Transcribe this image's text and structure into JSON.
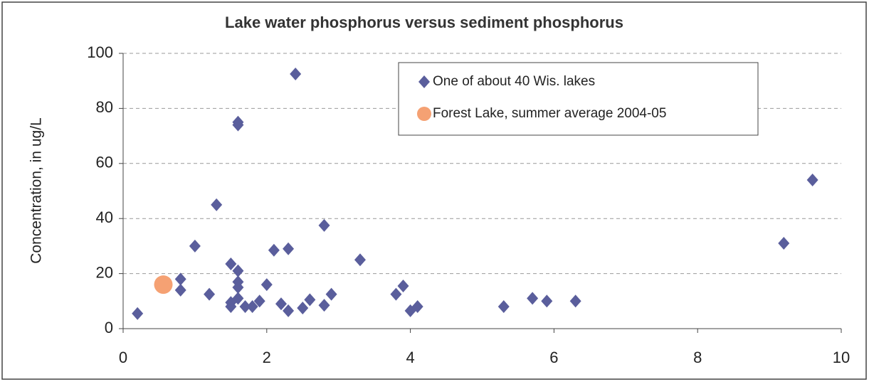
{
  "chart_data": {
    "type": "scatter",
    "title": "Lake water phosphorus versus sediment phosphorus",
    "y_label": "Concentration, in ug/L",
    "xlim": [
      0,
      10
    ],
    "xticks": [
      0,
      2,
      4,
      6,
      8,
      10
    ],
    "ylim": [
      0,
      100
    ],
    "yticks": [
      0,
      20,
      40,
      60,
      80,
      100
    ],
    "grid": true,
    "legend_position": "top-right",
    "series": [
      {
        "name": "One of about 40 Wis. lakes",
        "color": "#5a5e9c",
        "marker": "diamond",
        "x": [
          0.2,
          0.8,
          0.8,
          1.0,
          1.2,
          1.3,
          1.5,
          1.5,
          1.5,
          1.6,
          1.6,
          1.6,
          1.6,
          1.6,
          1.6,
          1.7,
          1.8,
          1.9,
          2.0,
          2.1,
          2.2,
          2.3,
          2.3,
          2.4,
          2.5,
          2.6,
          2.8,
          2.8,
          2.9,
          3.3,
          3.8,
          3.9,
          4.0,
          4.1,
          5.3,
          5.7,
          5.9,
          6.3,
          9.2,
          9.6
        ],
        "values": [
          5.5,
          18,
          14,
          30,
          12.5,
          45,
          23.5,
          9.5,
          8,
          21,
          17,
          15,
          11,
          75,
          74,
          8,
          8,
          10,
          16,
          28.5,
          9,
          29,
          6.5,
          92.5,
          7.5,
          10.5,
          8.5,
          37.5,
          12.5,
          25,
          12.5,
          15.5,
          6.5,
          8,
          8,
          11,
          10,
          10,
          31,
          54
        ]
      },
      {
        "name": "Forest Lake, summer average 2004-05",
        "color": "#f5a173",
        "marker": "circle",
        "x": [
          0.56
        ],
        "values": [
          16
        ]
      }
    ]
  }
}
